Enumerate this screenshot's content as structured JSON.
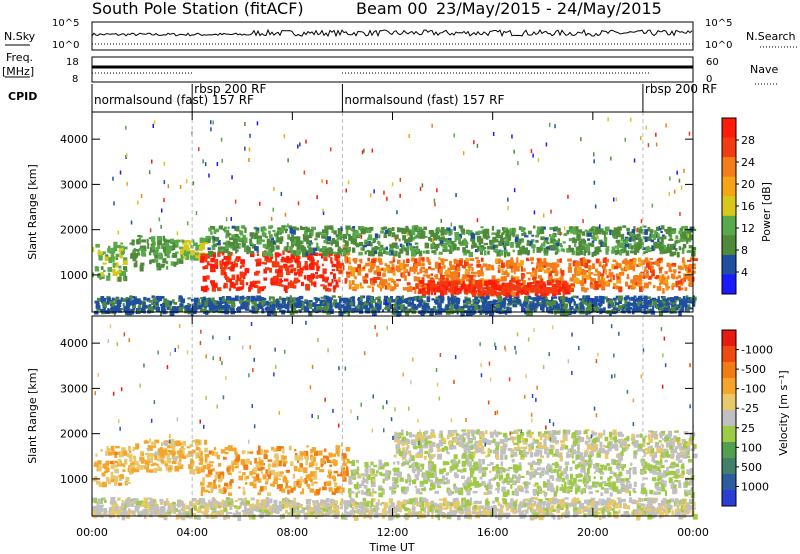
{
  "header": {
    "station": "South Pole Station (fitACF)",
    "beam": "Beam 00",
    "dates": "23/May/2015 - 24/May/2015"
  },
  "panels": {
    "nsky": {
      "label": "N.Sky",
      "right_label": "N.Search",
      "ticks_left": [
        "10^5",
        "10^0"
      ],
      "ticks_right": [
        "10^5",
        "10^0"
      ]
    },
    "freq": {
      "label_line1": "Freq.",
      "label_line2": "[MHz]",
      "right_label": "Nave",
      "ticks_left": [
        "18",
        "8"
      ],
      "ticks_right": [
        "60",
        "0"
      ]
    },
    "cpid": {
      "label": "CPID",
      "segments": [
        {
          "start_hour": 0,
          "end_hour": 4,
          "label": "normalsound (fast) 157 RF",
          "row": "low"
        },
        {
          "start_hour": 4,
          "end_hour": 10,
          "label": "rbsp 200 RF",
          "row": "high"
        },
        {
          "start_hour": 10,
          "end_hour": 22,
          "label": "normalsound (fast) 157 RF",
          "row": "low"
        },
        {
          "start_hour": 22,
          "end_hour": 24,
          "label": "rbsp 200 RF",
          "row": "high"
        }
      ]
    }
  },
  "power_colorbar": {
    "label": "Power [dB]",
    "ticks": [
      "4",
      "8",
      "12",
      "16",
      "20",
      "24",
      "28"
    ],
    "colors": [
      "#1a1aff",
      "#1f4fa0",
      "#4f8a3a",
      "#58a94a",
      "#d8c81a",
      "#f5a416",
      "#f47d1a",
      "#f23c10",
      "#ff1a0a"
    ]
  },
  "velocity_colorbar": {
    "label": "Velocity [m s⁻¹]",
    "ticks": [
      "1000",
      "500",
      "100",
      "25",
      "-25",
      "-100",
      "-500",
      "-1000"
    ],
    "colors": [
      "#2a3ed6",
      "#2b5c9f",
      "#43806b",
      "#52a04e",
      "#9ecb45",
      "#c0c0c0",
      "#e8c86a",
      "#f5a52a",
      "#f27b14",
      "#ee4a10",
      "#e81a12"
    ]
  },
  "chart_data": {
    "type": "heatmap",
    "xlabel": "Time UT",
    "x_ticks": [
      "00:00",
      "04:00",
      "08:00",
      "12:00",
      "16:00",
      "20:00",
      "00:00"
    ],
    "xlim_hours": [
      0,
      24
    ],
    "ylabel": "Slant Range [km]",
    "y_ticks": [
      "1000",
      "2000",
      "3000",
      "4000"
    ],
    "ylim_km": [
      180,
      4600
    ],
    "panels": [
      {
        "name": "power",
        "units": "dB",
        "range": [
          0,
          30
        ],
        "regions": [
          {
            "t0": 0,
            "t1": 1.3,
            "r0": 950,
            "r1": 1750,
            "value": 12
          },
          {
            "t0": 1.5,
            "t1": 3.5,
            "r0": 1200,
            "r1": 1900,
            "value": 10
          },
          {
            "t0": 3.5,
            "t1": 4.5,
            "r0": 1400,
            "r1": 1850,
            "value": 14
          },
          {
            "t0": 4.3,
            "t1": 9.8,
            "r0": 700,
            "r1": 1550,
            "value": 27
          },
          {
            "t0": 9.8,
            "t1": 10.2,
            "r0": 800,
            "r1": 1700,
            "value": 24
          },
          {
            "t0": 10.2,
            "t1": 24,
            "r0": 700,
            "r1": 1400,
            "value": 22
          },
          {
            "t0": 13,
            "t1": 19,
            "r0": 600,
            "r1": 900,
            "value": 26
          },
          {
            "t0": 4.5,
            "t1": 24,
            "r0": 1500,
            "r1": 2100,
            "value": 9
          },
          {
            "t0": 0,
            "t1": 24,
            "r0": 200,
            "r1": 550,
            "value": 6
          }
        ]
      },
      {
        "name": "velocity",
        "units": "m s-1",
        "range": [
          -1000,
          1000
        ],
        "regions": [
          {
            "t0": 0,
            "t1": 1.5,
            "r0": 900,
            "r1": 1750,
            "value": -300
          },
          {
            "t0": 1.5,
            "t1": 4.5,
            "r0": 1200,
            "r1": 1900,
            "value": -250
          },
          {
            "t0": 4.3,
            "t1": 10.2,
            "r0": 700,
            "r1": 1750,
            "value": -350
          },
          {
            "t0": 10.2,
            "t1": 24,
            "r0": 700,
            "r1": 1450,
            "value": 80
          },
          {
            "t0": 12,
            "t1": 24,
            "r0": 1500,
            "r1": 2100,
            "value": 0
          },
          {
            "t0": 0,
            "t1": 24,
            "r0": 200,
            "r1": 600,
            "value": -30
          }
        ]
      }
    ]
  }
}
